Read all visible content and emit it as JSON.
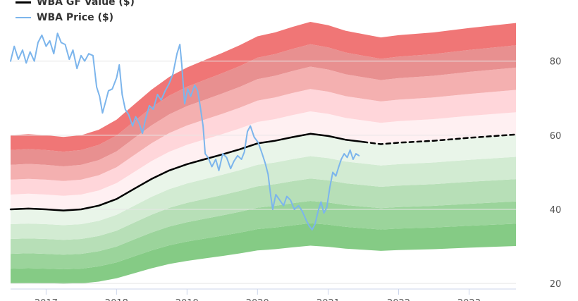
{
  "chart_data": {
    "type": "line",
    "title": "",
    "legend": {
      "placement": "top-left",
      "items": [
        {
          "label": "WBA GF Value ($)",
          "color": "#000000"
        },
        {
          "label": "WBA Price ($)",
          "color": "#7cb5ec"
        }
      ]
    },
    "x_ticks": [
      "2017",
      "2018",
      "2019",
      "2020",
      "2021",
      "2022",
      "2023"
    ],
    "y_ticks": [
      20,
      40,
      60,
      80
    ],
    "xlim": [
      "2016-07-01",
      "2023-09-01"
    ],
    "ylim": [
      18.5,
      96.5
    ],
    "y_axis_position": "right",
    "grid": true,
    "series": [
      {
        "name": "WBA GF Value ($)",
        "color": "#000000",
        "style": "solid",
        "points": [
          [
            "2016-07-01",
            40.0
          ],
          [
            "2016-10-01",
            40.2
          ],
          [
            "2017-01-01",
            40.0
          ],
          [
            "2017-04-01",
            39.7
          ],
          [
            "2017-07-01",
            40.0
          ],
          [
            "2017-10-01",
            41.0
          ],
          [
            "2018-01-01",
            42.8
          ],
          [
            "2018-04-01",
            45.5
          ],
          [
            "2018-07-01",
            48.2
          ],
          [
            "2018-10-01",
            50.5
          ],
          [
            "2019-01-01",
            52.2
          ],
          [
            "2019-04-01",
            53.5
          ],
          [
            "2019-07-01",
            54.8
          ],
          [
            "2019-10-01",
            56.2
          ],
          [
            "2020-01-01",
            57.8
          ],
          [
            "2020-04-01",
            58.5
          ],
          [
            "2020-07-01",
            59.5
          ],
          [
            "2020-10-01",
            60.4
          ],
          [
            "2021-01-01",
            59.8
          ],
          [
            "2021-04-01",
            58.8
          ],
          [
            "2021-07-01",
            58.2
          ]
        ]
      },
      {
        "name": "WBA GF Value ($) projection",
        "color": "#000000",
        "style": "dashed",
        "points": [
          [
            "2021-07-01",
            58.2
          ],
          [
            "2021-10-01",
            57.6
          ],
          [
            "2022-01-01",
            58.0
          ],
          [
            "2022-07-01",
            58.5
          ],
          [
            "2023-01-01",
            59.3
          ],
          [
            "2023-09-01",
            60.2
          ]
        ]
      },
      {
        "name": "WBA Price ($)",
        "color": "#7cb5ec",
        "style": "solid",
        "points": [
          [
            "2016-07-01",
            80.0
          ],
          [
            "2016-07-20",
            84.0
          ],
          [
            "2016-08-10",
            80.5
          ],
          [
            "2016-09-01",
            83.0
          ],
          [
            "2016-09-20",
            79.5
          ],
          [
            "2016-10-10",
            82.5
          ],
          [
            "2016-11-01",
            80.0
          ],
          [
            "2016-11-20",
            85.0
          ],
          [
            "2016-12-10",
            87.0
          ],
          [
            "2017-01-01",
            84.0
          ],
          [
            "2017-01-20",
            85.5
          ],
          [
            "2017-02-10",
            82.0
          ],
          [
            "2017-03-01",
            87.5
          ],
          [
            "2017-03-20",
            85.0
          ],
          [
            "2017-04-10",
            84.5
          ],
          [
            "2017-05-01",
            80.5
          ],
          [
            "2017-05-20",
            83.0
          ],
          [
            "2017-06-10",
            78.0
          ],
          [
            "2017-07-01",
            81.5
          ],
          [
            "2017-07-20",
            80.0
          ],
          [
            "2017-08-10",
            82.0
          ],
          [
            "2017-09-01",
            81.5
          ],
          [
            "2017-09-20",
            73.0
          ],
          [
            "2017-10-05",
            70.5
          ],
          [
            "2017-10-20",
            66.0
          ],
          [
            "2017-11-05",
            69.0
          ],
          [
            "2017-11-20",
            72.0
          ],
          [
            "2017-12-10",
            72.5
          ],
          [
            "2018-01-01",
            75.5
          ],
          [
            "2018-01-15",
            79.0
          ],
          [
            "2018-01-30",
            71.0
          ],
          [
            "2018-02-15",
            67.0
          ],
          [
            "2018-03-05",
            65.5
          ],
          [
            "2018-03-25",
            62.5
          ],
          [
            "2018-04-10",
            65.0
          ],
          [
            "2018-04-30",
            63.0
          ],
          [
            "2018-05-15",
            60.5
          ],
          [
            "2018-06-01",
            64.5
          ],
          [
            "2018-06-20",
            68.0
          ],
          [
            "2018-07-10",
            67.0
          ],
          [
            "2018-08-01",
            71.0
          ],
          [
            "2018-08-20",
            69.5
          ],
          [
            "2018-09-10",
            72.0
          ],
          [
            "2018-10-01",
            74.0
          ],
          [
            "2018-10-20",
            76.5
          ],
          [
            "2018-11-10",
            82.0
          ],
          [
            "2018-11-25",
            84.5
          ],
          [
            "2018-12-05",
            79.0
          ],
          [
            "2018-12-20",
            68.5
          ],
          [
            "2019-01-05",
            72.5
          ],
          [
            "2019-01-20",
            70.5
          ],
          [
            "2019-02-10",
            73.5
          ],
          [
            "2019-02-25",
            72.0
          ],
          [
            "2019-03-10",
            68.0
          ],
          [
            "2019-03-25",
            62.5
          ],
          [
            "2019-04-05",
            55.0
          ],
          [
            "2019-04-20",
            54.0
          ],
          [
            "2019-05-10",
            51.5
          ],
          [
            "2019-05-30",
            53.5
          ],
          [
            "2019-06-15",
            50.5
          ],
          [
            "2019-07-05",
            55.0
          ],
          [
            "2019-07-25",
            54.0
          ],
          [
            "2019-08-15",
            51.0
          ],
          [
            "2019-09-01",
            53.0
          ],
          [
            "2019-09-20",
            54.5
          ],
          [
            "2019-10-10",
            53.5
          ],
          [
            "2019-10-25",
            55.5
          ],
          [
            "2019-11-10",
            61.0
          ],
          [
            "2019-11-25",
            62.5
          ],
          [
            "2019-12-15",
            59.5
          ],
          [
            "2020-01-05",
            58.0
          ],
          [
            "2020-01-25",
            55.0
          ],
          [
            "2020-02-10",
            52.5
          ],
          [
            "2020-02-25",
            49.5
          ],
          [
            "2020-03-10",
            43.5
          ],
          [
            "2020-03-20",
            40.0
          ],
          [
            "2020-04-05",
            44.0
          ],
          [
            "2020-04-25",
            42.5
          ],
          [
            "2020-05-15",
            41.0
          ],
          [
            "2020-06-01",
            43.5
          ],
          [
            "2020-06-20",
            42.5
          ],
          [
            "2020-07-10",
            40.0
          ],
          [
            "2020-08-01",
            41.0
          ],
          [
            "2020-08-20",
            39.5
          ],
          [
            "2020-09-10",
            37.0
          ],
          [
            "2020-09-25",
            35.5
          ],
          [
            "2020-10-10",
            34.5
          ],
          [
            "2020-10-25",
            36.0
          ],
          [
            "2020-11-10",
            39.5
          ],
          [
            "2020-11-25",
            42.0
          ],
          [
            "2020-12-10",
            39.0
          ],
          [
            "2020-12-25",
            40.5
          ],
          [
            "2021-01-10",
            46.0
          ],
          [
            "2021-01-25",
            50.0
          ],
          [
            "2021-02-10",
            49.0
          ],
          [
            "2021-02-25",
            51.5
          ],
          [
            "2021-03-10",
            53.5
          ],
          [
            "2021-03-25",
            55.0
          ],
          [
            "2021-04-10",
            54.0
          ],
          [
            "2021-04-25",
            56.0
          ],
          [
            "2021-05-10",
            53.5
          ],
          [
            "2021-05-25",
            55.0
          ],
          [
            "2021-06-10",
            54.5
          ]
        ]
      }
    ],
    "bands": {
      "anchor_series": "WBA GF Value ($)",
      "multipliers": [
        0.5,
        0.6,
        0.7,
        0.8,
        0.9,
        1.0,
        1.1,
        1.2,
        1.3,
        1.4,
        1.5
      ],
      "colors": [
        "#85cb85",
        "#9bd49b",
        "#b7dfb7",
        "#d2ebd2",
        "#e9f5e9",
        "#fff0f2",
        "#ffd6da",
        "#f4b0b0",
        "#e89090",
        "#f07676"
      ],
      "extends_to": "2023-09-01"
    },
    "colors": {
      "grid": "#e6e6e6",
      "axis": "#ccd6eb",
      "tick_text": "#555555"
    }
  }
}
